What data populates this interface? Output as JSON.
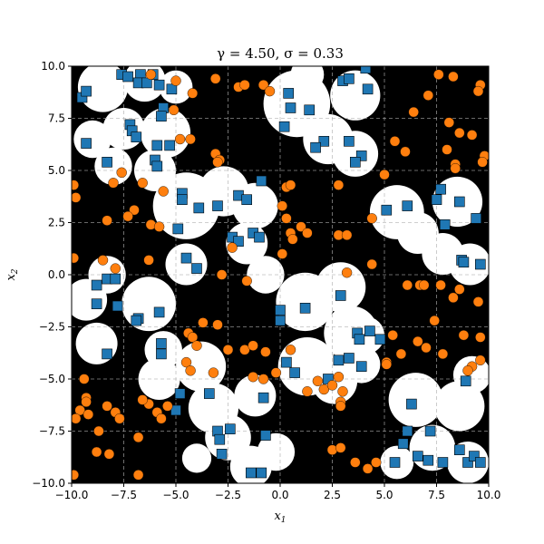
{
  "chart_data": {
    "type": "scatter",
    "title": "γ = 4.50, σ = 0.33",
    "xlabel": "x1",
    "ylabel": "x2",
    "xlim": [
      -10,
      10
    ],
    "ylim": [
      -10,
      10
    ],
    "xticks": [
      -10.0,
      -7.5,
      -5.0,
      -2.5,
      0.0,
      2.5,
      5.0,
      7.5,
      10.0
    ],
    "yticks": [
      -10.0,
      -7.5,
      -5.0,
      -2.5,
      0.0,
      2.5,
      5.0,
      7.5,
      10.0
    ],
    "xtick_labels": [
      "−10.0",
      "−7.5",
      "−5.0",
      "−2.5",
      "0.0",
      "2.5",
      "5.0",
      "7.5",
      "10.0"
    ],
    "ytick_labels": [
      "−10.0",
      "−7.5",
      "−5.0",
      "−2.5",
      "0.0",
      "2.5",
      "5.0",
      "7.5",
      "10.0"
    ],
    "grid": true,
    "background": "decision regions: black and white",
    "colors": {
      "class_a": "#1f77b4",
      "class_b": "#ff7f0e",
      "region_dark": "#000000",
      "region_light": "#ffffff"
    },
    "white_regions": [
      {
        "x": -8.5,
        "y": 9.0,
        "r": 1.2
      },
      {
        "x": -6.5,
        "y": 9.3,
        "r": 1.0
      },
      {
        "x": -5.0,
        "y": 9.0,
        "r": 0.8
      },
      {
        "x": -9.0,
        "y": 6.5,
        "r": 0.9
      },
      {
        "x": -7.5,
        "y": 7.0,
        "r": 1.0
      },
      {
        "x": -5.5,
        "y": 6.8,
        "r": 1.2
      },
      {
        "x": -8.0,
        "y": 5.2,
        "r": 0.9
      },
      {
        "x": -6.0,
        "y": 5.0,
        "r": 1.0
      },
      {
        "x": 0.8,
        "y": 8.2,
        "r": 1.6
      },
      {
        "x": 2.3,
        "y": 6.5,
        "r": 1.2
      },
      {
        "x": 3.6,
        "y": 8.6,
        "r": 1.2
      },
      {
        "x": 3.6,
        "y": 5.8,
        "r": 1.1
      },
      {
        "x": 1.3,
        "y": 9.6,
        "r": 0.8
      },
      {
        "x": -4.5,
        "y": 3.3,
        "r": 1.6
      },
      {
        "x": -2.7,
        "y": 4.0,
        "r": 1.2
      },
      {
        "x": -1.2,
        "y": 3.3,
        "r": 1.1
      },
      {
        "x": -1.6,
        "y": 1.5,
        "r": 1.0
      },
      {
        "x": -4.5,
        "y": 0.5,
        "r": 1.0
      },
      {
        "x": -0.7,
        "y": 0.0,
        "r": 0.9
      },
      {
        "x": 5.6,
        "y": 3.0,
        "r": 1.3
      },
      {
        "x": 6.6,
        "y": 2.0,
        "r": 1.0
      },
      {
        "x": 8.5,
        "y": 3.5,
        "r": 1.2
      },
      {
        "x": 7.8,
        "y": 1.0,
        "r": 1.0
      },
      {
        "x": 9.1,
        "y": 0.5,
        "r": 1.0
      },
      {
        "x": -9.3,
        "y": -1.2,
        "r": 1.0
      },
      {
        "x": -8.3,
        "y": 0.0,
        "r": 0.9
      },
      {
        "x": -6.3,
        "y": -1.4,
        "r": 1.3
      },
      {
        "x": -5.6,
        "y": -3.6,
        "r": 0.9
      },
      {
        "x": -8.8,
        "y": -3.3,
        "r": 1.0
      },
      {
        "x": 1.2,
        "y": -1.3,
        "r": 1.4
      },
      {
        "x": 2.9,
        "y": -0.6,
        "r": 1.2
      },
      {
        "x": 3.4,
        "y": -2.8,
        "r": 1.3
      },
      {
        "x": 4.1,
        "y": -2.9,
        "r": 0.9
      },
      {
        "x": 1.3,
        "y": -4.4,
        "r": 1.4
      },
      {
        "x": 2.6,
        "y": -5.1,
        "r": 1.1
      },
      {
        "x": 3.9,
        "y": -4.3,
        "r": 0.9
      },
      {
        "x": -3.8,
        "y": -4.4,
        "r": 1.2
      },
      {
        "x": -5.8,
        "y": -5.0,
        "r": 1.0
      },
      {
        "x": -3.2,
        "y": -6.4,
        "r": 1.2
      },
      {
        "x": -1.2,
        "y": -5.8,
        "r": 1.0
      },
      {
        "x": -2.5,
        "y": -7.8,
        "r": 1.1
      },
      {
        "x": -1.4,
        "y": -9.2,
        "r": 1.0
      },
      {
        "x": -0.2,
        "y": -8.5,
        "r": 0.9
      },
      {
        "x": 6.5,
        "y": -6.0,
        "r": 1.3
      },
      {
        "x": 8.6,
        "y": -6.3,
        "r": 1.2
      },
      {
        "x": 9.2,
        "y": -4.8,
        "r": 0.9
      },
      {
        "x": 7.3,
        "y": -8.3,
        "r": 1.1
      },
      {
        "x": 9.0,
        "y": -9.0,
        "r": 1.0
      },
      {
        "x": 5.6,
        "y": -9.0,
        "r": 0.8
      },
      {
        "x": -4.0,
        "y": -8.8,
        "r": 0.7
      }
    ],
    "series": [
      {
        "marker": "square",
        "color": "#1f77b4",
        "points": [
          [
            -7.6,
            9.6
          ],
          [
            -7.3,
            9.5
          ],
          [
            -6.7,
            9.6
          ],
          [
            -6.1,
            9.6
          ],
          [
            -6.8,
            9.2
          ],
          [
            -6.4,
            9.2
          ],
          [
            -5.8,
            9.1
          ],
          [
            -5.2,
            8.9
          ],
          [
            -9.5,
            8.5
          ],
          [
            -9.3,
            8.8
          ],
          [
            -5.6,
            8.0
          ],
          [
            -5.7,
            7.6
          ],
          [
            -7.2,
            7.2
          ],
          [
            -7.1,
            6.9
          ],
          [
            -6.9,
            6.6
          ],
          [
            -9.3,
            6.3
          ],
          [
            -5.9,
            6.2
          ],
          [
            -5.3,
            6.2
          ],
          [
            -8.3,
            5.4
          ],
          [
            -6.0,
            5.5
          ],
          [
            -5.9,
            5.2
          ],
          [
            0.4,
            8.7
          ],
          [
            0.5,
            8.0
          ],
          [
            1.4,
            7.9
          ],
          [
            3.0,
            9.3
          ],
          [
            3.3,
            9.4
          ],
          [
            4.2,
            8.9
          ],
          [
            4.1,
            9.9
          ],
          [
            0.2,
            7.1
          ],
          [
            2.1,
            6.4
          ],
          [
            1.7,
            6.1
          ],
          [
            3.3,
            6.4
          ],
          [
            3.9,
            5.7
          ],
          [
            3.6,
            5.4
          ],
          [
            -4.7,
            3.9
          ],
          [
            -4.7,
            3.6
          ],
          [
            -3.9,
            3.2
          ],
          [
            -3.0,
            3.3
          ],
          [
            -2.0,
            3.8
          ],
          [
            -1.6,
            3.6
          ],
          [
            -0.9,
            4.5
          ],
          [
            -4.9,
            2.2
          ],
          [
            -1.3,
            2.0
          ],
          [
            -1.0,
            1.8
          ],
          [
            -2.3,
            1.8
          ],
          [
            -2.0,
            1.6
          ],
          [
            -4.5,
            0.8
          ],
          [
            -4.0,
            0.3
          ],
          [
            5.1,
            3.1
          ],
          [
            6.1,
            3.3
          ],
          [
            7.5,
            3.6
          ],
          [
            7.7,
            4.1
          ],
          [
            8.6,
            3.5
          ],
          [
            9.4,
            2.7
          ],
          [
            7.9,
            2.4
          ],
          [
            8.7,
            0.7
          ],
          [
            8.8,
            0.6
          ],
          [
            9.6,
            0.5
          ],
          [
            -8.8,
            -0.5
          ],
          [
            -8.3,
            -0.2
          ],
          [
            -7.9,
            -0.2
          ],
          [
            -8.8,
            -1.4
          ],
          [
            -7.8,
            -1.5
          ],
          [
            -6.8,
            -2.1
          ],
          [
            -6.9,
            -2.2
          ],
          [
            -5.8,
            -1.8
          ],
          [
            -5.7,
            -3.3
          ],
          [
            -5.7,
            -3.8
          ],
          [
            -8.3,
            -3.8
          ],
          [
            1.2,
            -1.6
          ],
          [
            2.9,
            -1.0
          ],
          [
            0.0,
            -1.7
          ],
          [
            -0.0,
            -2.2
          ],
          [
            3.7,
            -2.8
          ],
          [
            3.8,
            -3.1
          ],
          [
            4.3,
            -2.7
          ],
          [
            4.8,
            -3.1
          ],
          [
            0.3,
            -4.2
          ],
          [
            0.7,
            -4.7
          ],
          [
            2.3,
            -5.0
          ],
          [
            2.8,
            -4.1
          ],
          [
            3.3,
            -4.0
          ],
          [
            3.9,
            -4.4
          ],
          [
            -4.8,
            -5.7
          ],
          [
            -3.4,
            -5.7
          ],
          [
            -0.8,
            -5.9
          ],
          [
            -5.0,
            -6.5
          ],
          [
            -3.0,
            -7.5
          ],
          [
            -2.4,
            -7.4
          ],
          [
            -2.9,
            -7.9
          ],
          [
            -2.8,
            -8.6
          ],
          [
            -0.7,
            -7.7
          ],
          [
            -1.4,
            -9.5
          ],
          [
            -0.9,
            -9.5
          ],
          [
            6.3,
            -6.2
          ],
          [
            6.1,
            -7.5
          ],
          [
            7.2,
            -7.5
          ],
          [
            5.9,
            -8.1
          ],
          [
            6.6,
            -8.7
          ],
          [
            8.6,
            -8.4
          ],
          [
            7.1,
            -8.9
          ],
          [
            5.5,
            -9.0
          ],
          [
            7.8,
            -9.0
          ],
          [
            9.0,
            -9.0
          ],
          [
            9.3,
            -8.7
          ],
          [
            9.6,
            -9.0
          ],
          [
            8.9,
            -5.1
          ]
        ]
      },
      {
        "marker": "circle",
        "color": "#ff7f0e",
        "points": [
          [
            -6.2,
            9.6
          ],
          [
            -5.0,
            9.3
          ],
          [
            -4.2,
            8.7
          ],
          [
            -3.1,
            9.4
          ],
          [
            -2.0,
            9.0
          ],
          [
            -1.7,
            9.1
          ],
          [
            -0.8,
            9.1
          ],
          [
            -0.5,
            8.8
          ],
          [
            -5.1,
            7.9
          ],
          [
            -4.8,
            6.5
          ],
          [
            -4.3,
            6.5
          ],
          [
            -3.1,
            5.8
          ],
          [
            -2.9,
            5.5
          ],
          [
            -7.6,
            4.9
          ],
          [
            -6.6,
            4.4
          ],
          [
            -8.0,
            4.4
          ],
          [
            -7.0,
            3.1
          ],
          [
            -7.3,
            2.8
          ],
          [
            -8.3,
            2.6
          ],
          [
            -5.6,
            4.0
          ],
          [
            -6.2,
            2.4
          ],
          [
            -5.8,
            2.3
          ],
          [
            -6.3,
            0.7
          ],
          [
            -7.9,
            0.3
          ],
          [
            -8.5,
            0.7
          ],
          [
            -9.9,
            4.3
          ],
          [
            -9.8,
            3.7
          ],
          [
            -9.9,
            0.8
          ],
          [
            -3.0,
            5.4
          ],
          [
            -2.3,
            1.3
          ],
          [
            -2.8,
            0.0
          ],
          [
            -1.6,
            -0.3
          ],
          [
            0.3,
            4.2
          ],
          [
            0.5,
            4.3
          ],
          [
            0.1,
            3.3
          ],
          [
            0.3,
            2.7
          ],
          [
            0.5,
            2.0
          ],
          [
            0.6,
            1.7
          ],
          [
            1.0,
            2.3
          ],
          [
            1.3,
            2.0
          ],
          [
            0.1,
            1.0
          ],
          [
            2.8,
            4.3
          ],
          [
            4.4,
            2.7
          ],
          [
            2.8,
            1.9
          ],
          [
            3.2,
            1.9
          ],
          [
            3.2,
            0.1
          ],
          [
            4.4,
            0.5
          ],
          [
            5.0,
            4.8
          ],
          [
            5.5,
            6.4
          ],
          [
            6.0,
            5.9
          ],
          [
            6.4,
            7.8
          ],
          [
            7.1,
            8.6
          ],
          [
            7.6,
            9.6
          ],
          [
            8.3,
            9.5
          ],
          [
            9.6,
            9.1
          ],
          [
            9.5,
            8.8
          ],
          [
            8.1,
            7.3
          ],
          [
            8.6,
            6.8
          ],
          [
            9.2,
            6.7
          ],
          [
            8.0,
            6.0
          ],
          [
            8.4,
            5.3
          ],
          [
            8.4,
            5.1
          ],
          [
            9.8,
            5.7
          ],
          [
            9.7,
            5.4
          ],
          [
            -3.7,
            -2.3
          ],
          [
            -3.0,
            -2.4
          ],
          [
            -4.4,
            -2.8
          ],
          [
            -4.2,
            -3.0
          ],
          [
            -4.0,
            -3.4
          ],
          [
            -4.5,
            -4.2
          ],
          [
            -4.3,
            -4.6
          ],
          [
            -3.2,
            -4.7
          ],
          [
            -2.5,
            -3.6
          ],
          [
            -1.7,
            -3.6
          ],
          [
            -1.3,
            -3.4
          ],
          [
            -0.7,
            -3.7
          ],
          [
            -1.3,
            -4.9
          ],
          [
            -0.8,
            -5.0
          ],
          [
            -0.2,
            -4.7
          ],
          [
            0.5,
            -3.6
          ],
          [
            1.3,
            -5.6
          ],
          [
            1.8,
            -5.1
          ],
          [
            2.1,
            -5.5
          ],
          [
            2.5,
            -5.3
          ],
          [
            2.8,
            -4.9
          ],
          [
            2.9,
            -6.1
          ],
          [
            2.9,
            -6.3
          ],
          [
            3.0,
            -5.6
          ],
          [
            2.5,
            -8.4
          ],
          [
            2.9,
            -8.3
          ],
          [
            3.6,
            -9.0
          ],
          [
            4.2,
            -9.3
          ],
          [
            4.6,
            -9.0
          ],
          [
            5.1,
            -4.2
          ],
          [
            5.1,
            -4.3
          ],
          [
            5.4,
            -2.9
          ],
          [
            5.8,
            -3.8
          ],
          [
            6.6,
            -3.2
          ],
          [
            7.0,
            -3.5
          ],
          [
            7.4,
            -2.2
          ],
          [
            7.8,
            -3.8
          ],
          [
            8.8,
            -2.9
          ],
          [
            9.6,
            -3.0
          ],
          [
            9.2,
            -4.4
          ],
          [
            9.0,
            -4.6
          ],
          [
            9.6,
            -4.1
          ],
          [
            8.3,
            -1.1
          ],
          [
            9.5,
            -1.3
          ],
          [
            6.1,
            -0.5
          ],
          [
            6.7,
            -0.5
          ],
          [
            6.9,
            -0.5
          ],
          [
            7.7,
            -0.5
          ],
          [
            8.6,
            -0.7
          ],
          [
            -9.4,
            -5.0
          ],
          [
            -9.3,
            -5.9
          ],
          [
            -9.3,
            -6.1
          ],
          [
            -9.6,
            -6.5
          ],
          [
            -9.2,
            -6.7
          ],
          [
            -9.8,
            -6.9
          ],
          [
            -8.7,
            -7.5
          ],
          [
            -8.3,
            -6.3
          ],
          [
            -7.9,
            -6.6
          ],
          [
            -7.7,
            -6.9
          ],
          [
            -8.8,
            -8.5
          ],
          [
            -8.2,
            -8.6
          ],
          [
            -6.8,
            -7.8
          ],
          [
            -6.3,
            -6.2
          ],
          [
            -6.6,
            -6.0
          ],
          [
            -5.9,
            -6.6
          ],
          [
            -5.7,
            -6.9
          ],
          [
            -5.4,
            -6.3
          ],
          [
            -6.8,
            -9.6
          ],
          [
            -9.9,
            -9.6
          ]
        ]
      }
    ]
  }
}
